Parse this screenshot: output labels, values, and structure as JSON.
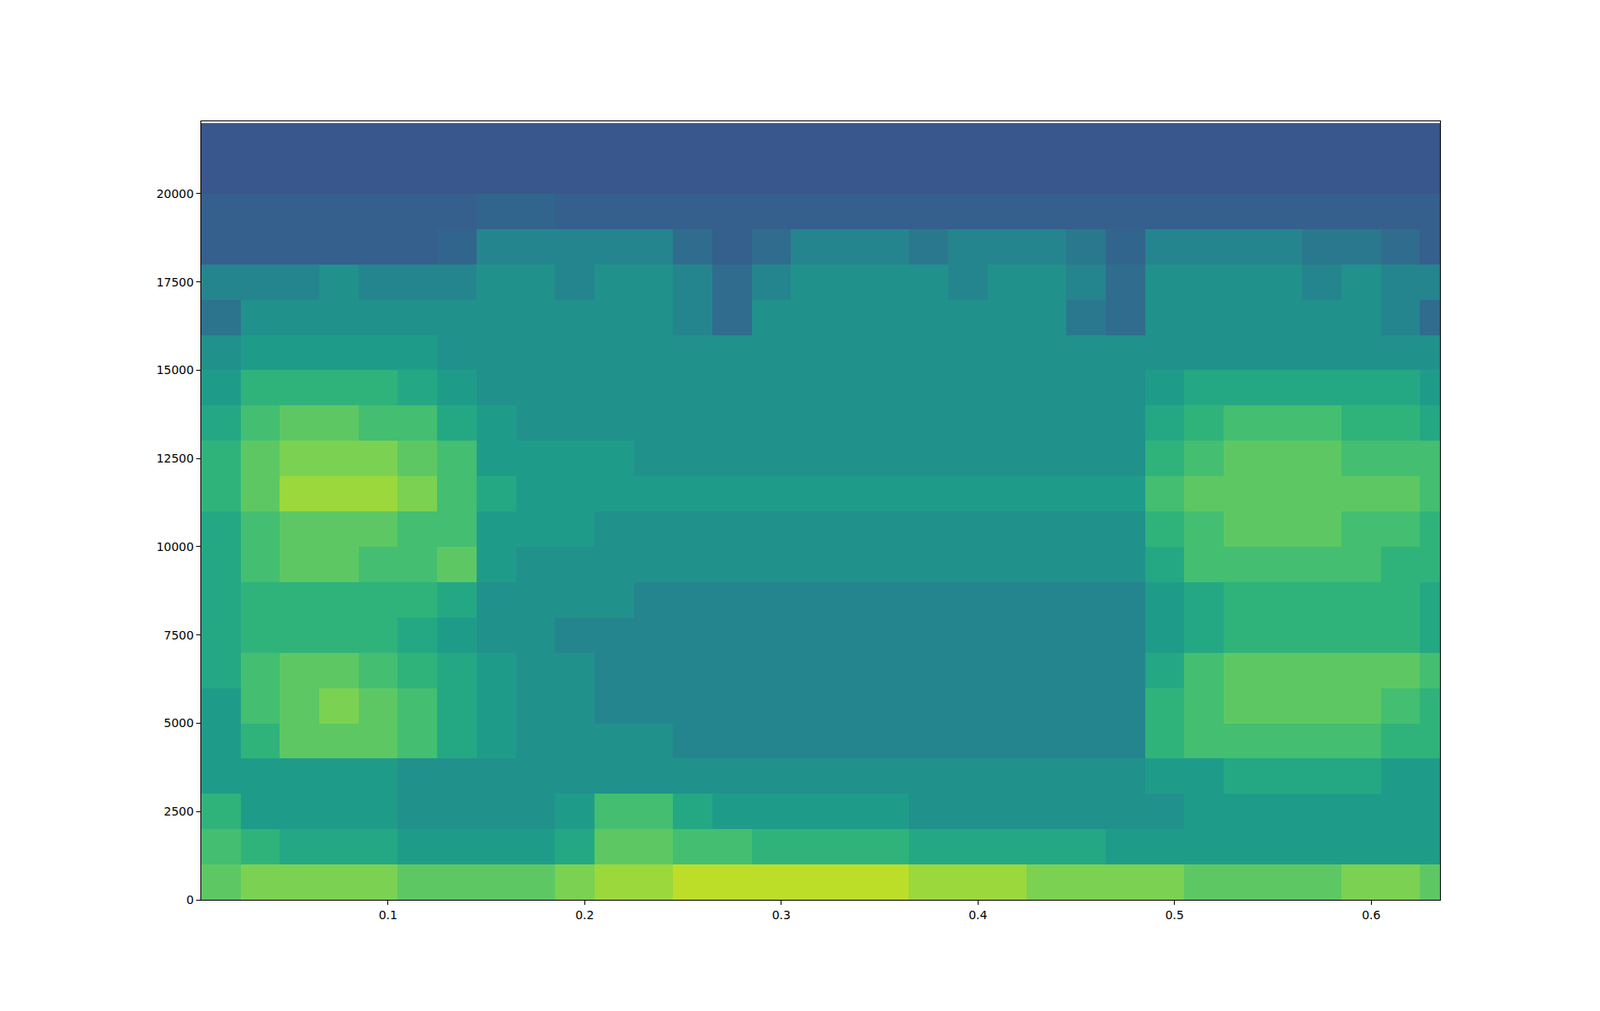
{
  "chart_data": {
    "type": "heatmap",
    "color": "Viridis",
    "x": [
      0.015,
      0.035,
      0.055,
      0.075,
      0.095,
      0.115,
      0.135,
      0.155,
      0.175,
      0.195,
      0.215,
      0.235,
      0.255,
      0.275,
      0.295,
      0.315,
      0.335,
      0.355,
      0.375,
      0.395,
      0.415,
      0.435,
      0.455,
      0.475,
      0.495,
      0.515,
      0.535,
      0.555,
      0.575,
      0.595,
      0.615,
      0.635
    ],
    "y": [
      500,
      1500,
      2500,
      3500,
      4500,
      5500,
      6500,
      7500,
      8500,
      9500,
      10500,
      11500,
      12500,
      13500,
      14500,
      15500,
      16500,
      17500,
      18500,
      19500,
      20500,
      21500
    ],
    "z": [
      [
        7.5,
        8,
        8,
        8,
        8,
        7.5,
        7.5,
        7.5,
        7.5,
        8,
        8.5,
        8.5,
        9,
        9,
        9,
        9,
        9,
        9,
        8.5,
        8.5,
        8.5,
        8,
        8,
        8,
        8,
        7.5,
        7.5,
        7.5,
        7.5,
        8,
        8,
        7.5
      ],
      [
        7,
        6.5,
        6,
        6,
        6,
        5.5,
        5.5,
        5.5,
        5.5,
        6,
        7.5,
        7.5,
        7,
        7,
        6.5,
        6.5,
        6.5,
        6.5,
        6,
        6,
        6,
        6,
        6,
        5.5,
        5.5,
        5.5,
        5.5,
        5.5,
        5.5,
        5.5,
        5.5,
        5.5
      ],
      [
        6.5,
        5.5,
        5.5,
        5.5,
        5.5,
        5,
        5,
        5,
        5,
        5.5,
        7,
        7,
        6,
        5.5,
        5.5,
        5.5,
        5.5,
        5.5,
        5,
        5,
        5,
        5,
        5,
        5,
        5,
        5.5,
        5.5,
        5.5,
        5.5,
        5.5,
        5.5,
        5.5
      ],
      [
        5.5,
        5.5,
        5.5,
        5.5,
        5.5,
        5,
        5,
        5,
        5,
        5,
        5,
        5,
        5,
        5,
        5,
        5,
        5,
        5,
        5,
        5,
        5,
        5,
        5,
        5,
        5.5,
        5.5,
        6,
        6,
        6,
        6,
        5.5,
        5.5
      ],
      [
        5.5,
        6.5,
        7.5,
        7.5,
        7.5,
        7,
        6,
        5.5,
        5,
        5,
        5,
        5,
        4.5,
        4.5,
        4.5,
        4.5,
        4.5,
        4.5,
        4.5,
        4.5,
        4.5,
        4.5,
        4.5,
        4.5,
        6.5,
        7,
        7,
        7,
        7,
        7,
        6.5,
        6.5
      ],
      [
        5.5,
        7,
        7.5,
        8,
        7.5,
        7,
        6,
        5.5,
        5,
        5,
        4.5,
        4.5,
        4.5,
        4.5,
        4.5,
        4.5,
        4.5,
        4.5,
        4.5,
        4.5,
        4.5,
        4.5,
        4.5,
        4.5,
        6.5,
        7,
        7.5,
        7.5,
        7.5,
        7.5,
        7,
        6.5
      ],
      [
        6,
        7,
        7.5,
        7.5,
        7,
        6.5,
        6,
        5.5,
        5,
        5,
        4.5,
        4.5,
        4.5,
        4.5,
        4.5,
        4.5,
        4.5,
        4.5,
        4.5,
        4.5,
        4.5,
        4.5,
        4.5,
        4.5,
        6,
        7,
        7.5,
        7.5,
        7.5,
        7.5,
        7.5,
        7
      ],
      [
        6,
        6.5,
        6.5,
        6.5,
        6.5,
        6,
        5.5,
        5,
        5,
        4.5,
        4.5,
        4.5,
        4.5,
        4.5,
        4.5,
        4.5,
        4.5,
        4.5,
        4.5,
        4.5,
        4.5,
        4.5,
        4.5,
        4.5,
        5.5,
        6,
        6.5,
        6.5,
        6.5,
        6.5,
        6.5,
        6
      ],
      [
        6,
        6.5,
        6.5,
        6.5,
        6.5,
        6.5,
        6,
        5,
        5,
        5,
        5,
        4.5,
        4.5,
        4.5,
        4.5,
        4.5,
        4.5,
        4.5,
        4.5,
        4.5,
        4.5,
        4.5,
        4.5,
        4.5,
        5.5,
        6,
        6.5,
        6.5,
        6.5,
        6.5,
        6.5,
        6
      ],
      [
        6,
        7,
        7.5,
        7.5,
        7,
        7,
        7.5,
        5.5,
        5,
        5,
        5,
        5,
        5,
        5,
        5,
        5,
        5,
        5,
        5,
        5,
        5,
        5,
        5,
        5,
        6,
        7,
        7,
        7,
        7,
        7,
        6.5,
        6.5
      ],
      [
        6,
        7,
        7.5,
        7.5,
        7.5,
        7,
        7,
        5.5,
        5.5,
        5.5,
        5,
        5,
        5,
        5,
        5,
        5,
        5,
        5,
        5,
        5,
        5,
        5,
        5,
        5,
        6.5,
        7,
        7.5,
        7.5,
        7.5,
        7,
        7,
        6.5
      ],
      [
        6.5,
        7.5,
        8.5,
        8.5,
        8.5,
        8,
        7,
        6,
        5.5,
        5.5,
        5.5,
        5.5,
        5.5,
        5.5,
        5.5,
        5.5,
        5.5,
        5.5,
        5.5,
        5.5,
        5.5,
        5.5,
        5.5,
        5.5,
        7,
        7.5,
        7.5,
        7.5,
        7.5,
        7.5,
        7.5,
        7
      ],
      [
        6.5,
        7.5,
        8,
        8,
        8,
        7.5,
        7,
        5.5,
        5.5,
        5.5,
        5.5,
        5,
        5,
        5,
        5,
        5,
        5,
        5,
        5,
        5,
        5,
        5,
        5,
        5,
        6.5,
        7,
        7.5,
        7.5,
        7.5,
        7,
        7,
        7
      ],
      [
        6,
        7,
        7.5,
        7.5,
        7,
        7,
        6,
        5.5,
        5,
        5,
        5,
        5,
        5,
        5,
        5,
        5,
        5,
        5,
        5,
        5,
        5,
        5,
        5,
        5,
        6,
        6.5,
        7,
        7,
        7,
        6.5,
        6.5,
        6
      ],
      [
        5.5,
        6.5,
        6.5,
        6.5,
        6.5,
        6,
        5.5,
        5,
        5,
        5,
        5,
        5,
        5,
        5,
        5,
        5,
        5,
        5,
        5,
        5,
        5,
        5,
        5,
        5,
        5.5,
        6,
        6,
        6,
        6,
        6,
        6,
        5.5
      ],
      [
        5,
        5.5,
        5.5,
        5.5,
        5.5,
        5.5,
        5,
        5,
        5,
        5,
        5,
        5,
        5,
        5,
        5,
        5,
        5,
        5,
        5,
        5,
        5,
        5,
        5,
        5,
        5,
        5,
        5,
        5,
        5,
        5,
        5,
        5
      ],
      [
        3.8,
        5,
        5,
        5,
        5,
        5,
        5,
        5,
        5,
        5,
        5,
        5,
        4.5,
        3.5,
        5,
        5,
        5,
        5,
        5,
        5,
        5,
        5,
        4,
        3.5,
        5,
        5,
        5,
        5,
        5,
        5,
        4.5,
        3.5
      ],
      [
        4.5,
        4.5,
        4.5,
        5,
        4.5,
        4.5,
        4.5,
        5,
        5,
        4.5,
        5,
        5,
        4.5,
        3.5,
        4.5,
        5,
        5,
        5,
        5,
        4.5,
        5,
        5,
        4.5,
        3.5,
        5,
        5,
        5,
        5,
        4.5,
        5,
        4.5,
        4.5
      ],
      [
        3,
        3,
        3,
        3,
        3,
        3,
        3.2,
        4.5,
        4.5,
        4.5,
        4.5,
        4.5,
        3.5,
        3,
        3.5,
        4.5,
        4.5,
        4.5,
        4,
        4.5,
        4.5,
        4.5,
        4,
        3.2,
        4.5,
        4.5,
        4.5,
        4.5,
        4,
        4,
        3.5,
        3
      ],
      [
        3,
        3,
        3,
        3,
        3,
        3,
        3,
        3.2,
        3.2,
        3,
        3,
        3,
        3,
        3,
        3,
        3,
        3,
        3,
        3,
        3,
        3,
        3,
        3,
        3,
        3,
        3,
        3,
        3,
        3,
        3,
        3,
        3
      ],
      [
        2.7,
        2.7,
        2.7,
        2.7,
        2.7,
        2.7,
        2.7,
        2.7,
        2.7,
        2.7,
        2.7,
        2.7,
        2.7,
        2.7,
        2.7,
        2.7,
        2.7,
        2.7,
        2.7,
        2.7,
        2.7,
        2.7,
        2.7,
        2.7,
        2.7,
        2.7,
        2.7,
        2.7,
        2.7,
        2.7,
        2.7,
        2.7
      ],
      [
        2.7,
        2.7,
        2.7,
        2.7,
        2.7,
        2.7,
        2.7,
        2.7,
        2.7,
        2.7,
        2.7,
        2.7,
        2.7,
        2.7,
        2.7,
        2.7,
        2.7,
        2.7,
        2.7,
        2.7,
        2.7,
        2.7,
        2.7,
        2.7,
        2.7,
        2.7,
        2.7,
        2.7,
        2.7,
        2.7,
        2.7,
        2.7
      ]
    ],
    "zlim": [
      0,
      10
    ],
    "xlim": [
      0.005,
      0.635
    ],
    "ylim": [
      0,
      22050
    ],
    "xticks": [
      0.1,
      0.2,
      0.3,
      0.4,
      0.5,
      0.6
    ],
    "yticks": [
      0,
      2500,
      5000,
      7500,
      10000,
      12500,
      15000,
      17500,
      20000
    ]
  }
}
